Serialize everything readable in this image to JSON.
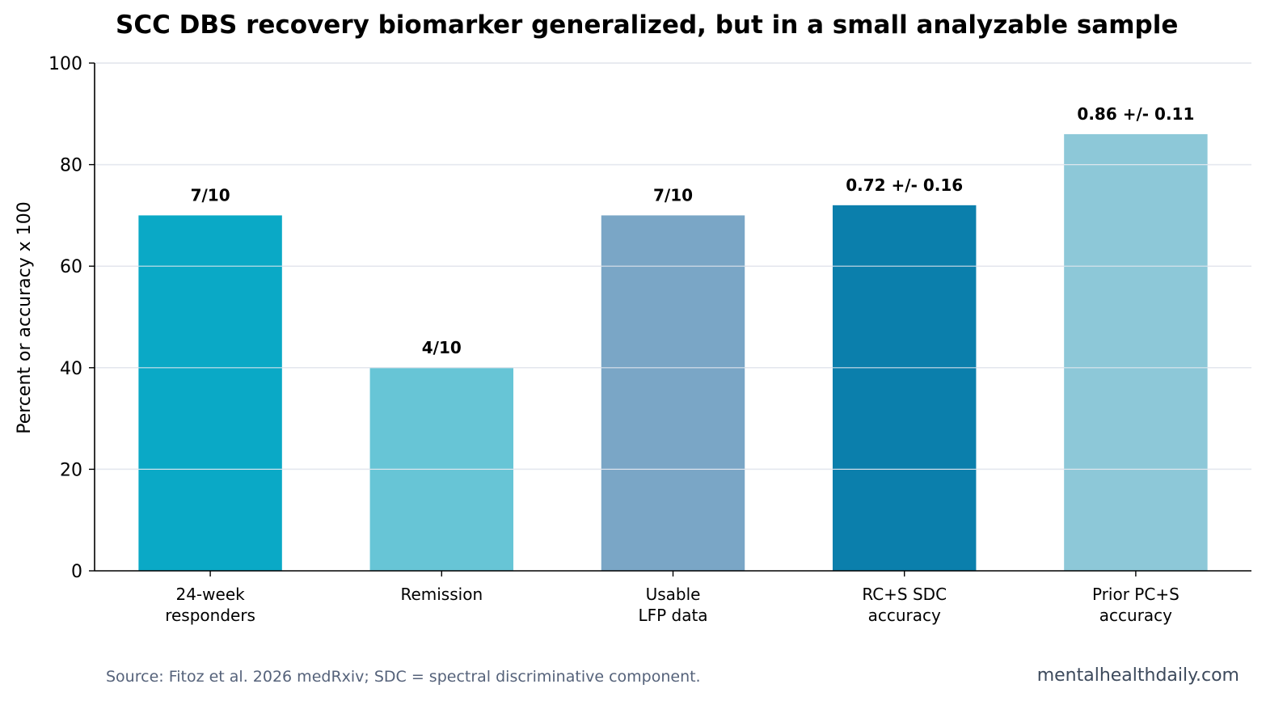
{
  "chart_data": {
    "type": "bar",
    "title": "SCC DBS recovery biomarker generalized, but in a small analyzable sample",
    "xlabel": "",
    "ylabel": "Percent or accuracy x 100",
    "ylim": [
      0,
      100
    ],
    "yticks": [
      0,
      20,
      40,
      60,
      80,
      100
    ],
    "grid": "horizontal",
    "categories": [
      [
        "24-week",
        "responders"
      ],
      [
        "Remission"
      ],
      [
        "Usable",
        "LFP data"
      ],
      [
        "RC+S SDC",
        "accuracy"
      ],
      [
        "Prior PC+S",
        "accuracy"
      ]
    ],
    "values": [
      70,
      40,
      70,
      72,
      86
    ],
    "data_labels": [
      "7/10",
      "4/10",
      "7/10",
      "0.72 +/- 0.16",
      "0.86 +/- 0.11"
    ],
    "colors": [
      "#0aa9c6",
      "#67c5d6",
      "#7aa6c6",
      "#0b7fac",
      "#8dc8d8"
    ]
  },
  "footer": {
    "source": "Source: Fitoz et al. 2026 medRxiv; SDC = spectral discriminative component.",
    "brand": "mentalhealthdaily.com"
  }
}
